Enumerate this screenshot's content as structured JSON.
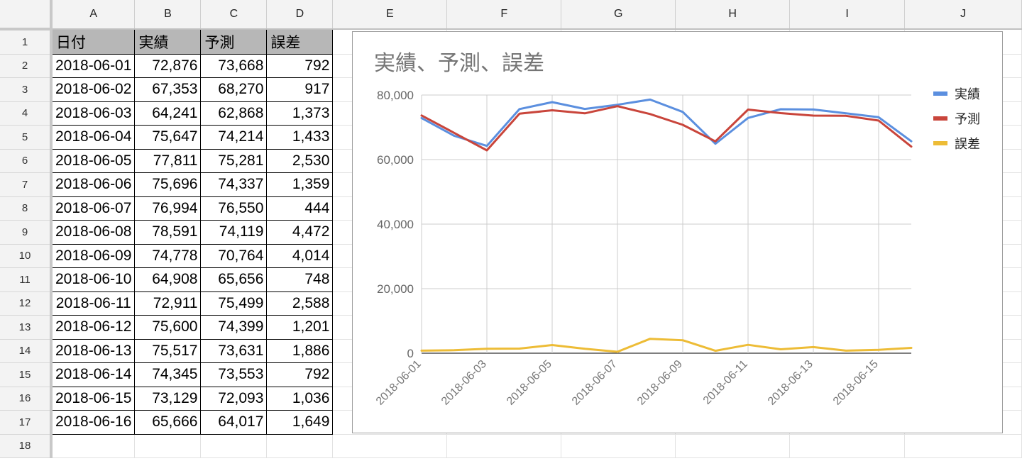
{
  "sheet": {
    "columns": [
      "A",
      "B",
      "C",
      "D",
      "E",
      "F",
      "G",
      "H",
      "I",
      "J"
    ],
    "rows": [
      "1",
      "2",
      "3",
      "4",
      "5",
      "6",
      "7",
      "8",
      "9",
      "10",
      "11",
      "12",
      "13",
      "14",
      "15",
      "16",
      "17",
      "18"
    ],
    "header": [
      "日付",
      "実績",
      "予測",
      "誤差"
    ],
    "data": [
      [
        "2018-06-01",
        "72,876",
        "73,668",
        "792"
      ],
      [
        "2018-06-02",
        "67,353",
        "68,270",
        "917"
      ],
      [
        "2018-06-03",
        "64,241",
        "62,868",
        "1,373"
      ],
      [
        "2018-06-04",
        "75,647",
        "74,214",
        "1,433"
      ],
      [
        "2018-06-05",
        "77,811",
        "75,281",
        "2,530"
      ],
      [
        "2018-06-06",
        "75,696",
        "74,337",
        "1,359"
      ],
      [
        "2018-06-07",
        "76,994",
        "76,550",
        "444"
      ],
      [
        "2018-06-08",
        "78,591",
        "74,119",
        "4,472"
      ],
      [
        "2018-06-09",
        "74,778",
        "70,764",
        "4,014"
      ],
      [
        "2018-06-10",
        "64,908",
        "65,656",
        "748"
      ],
      [
        "2018-06-11",
        "72,911",
        "75,499",
        "2,588"
      ],
      [
        "2018-06-12",
        "75,600",
        "74,399",
        "1,201"
      ],
      [
        "2018-06-13",
        "75,517",
        "73,631",
        "1,886"
      ],
      [
        "2018-06-14",
        "74,345",
        "73,553",
        "792"
      ],
      [
        "2018-06-15",
        "73,129",
        "72,093",
        "1,036"
      ],
      [
        "2018-06-16",
        "65,666",
        "64,017",
        "1,649"
      ]
    ]
  },
  "chart_data": {
    "type": "line",
    "title": "実績、予測、誤差",
    "xlabel": "",
    "ylabel": "",
    "x": [
      "2018-06-01",
      "2018-06-02",
      "2018-06-03",
      "2018-06-04",
      "2018-06-05",
      "2018-06-06",
      "2018-06-07",
      "2018-06-08",
      "2018-06-09",
      "2018-06-10",
      "2018-06-11",
      "2018-06-12",
      "2018-06-13",
      "2018-06-14",
      "2018-06-15",
      "2018-06-16"
    ],
    "x_tick_labels": [
      "2018-06-01",
      "2018-06-03",
      "2018-06-05",
      "2018-06-07",
      "2018-06-09",
      "2018-06-11",
      "2018-06-13",
      "2018-06-15"
    ],
    "y_ticks": [
      0,
      20000,
      40000,
      60000,
      80000
    ],
    "y_tick_labels": [
      "0",
      "20,000",
      "40,000",
      "60,000",
      "80,000"
    ],
    "ylim": [
      0,
      80000
    ],
    "grid": true,
    "legend_position": "right",
    "series": [
      {
        "name": "実績",
        "color": "#5b8fdf",
        "values": [
          72876,
          67353,
          64241,
          75647,
          77811,
          75696,
          76994,
          78591,
          74778,
          64908,
          72911,
          75600,
          75517,
          74345,
          73129,
          65666
        ]
      },
      {
        "name": "予測",
        "color": "#c9453b",
        "values": [
          73668,
          68270,
          62868,
          74214,
          75281,
          74337,
          76550,
          74119,
          70764,
          65656,
          75499,
          74399,
          73631,
          73553,
          72093,
          64017
        ]
      },
      {
        "name": "誤差",
        "color": "#edbc36",
        "values": [
          792,
          917,
          1373,
          1433,
          2530,
          1359,
          444,
          4472,
          4014,
          748,
          2588,
          1201,
          1886,
          792,
          1036,
          1649
        ]
      }
    ]
  }
}
